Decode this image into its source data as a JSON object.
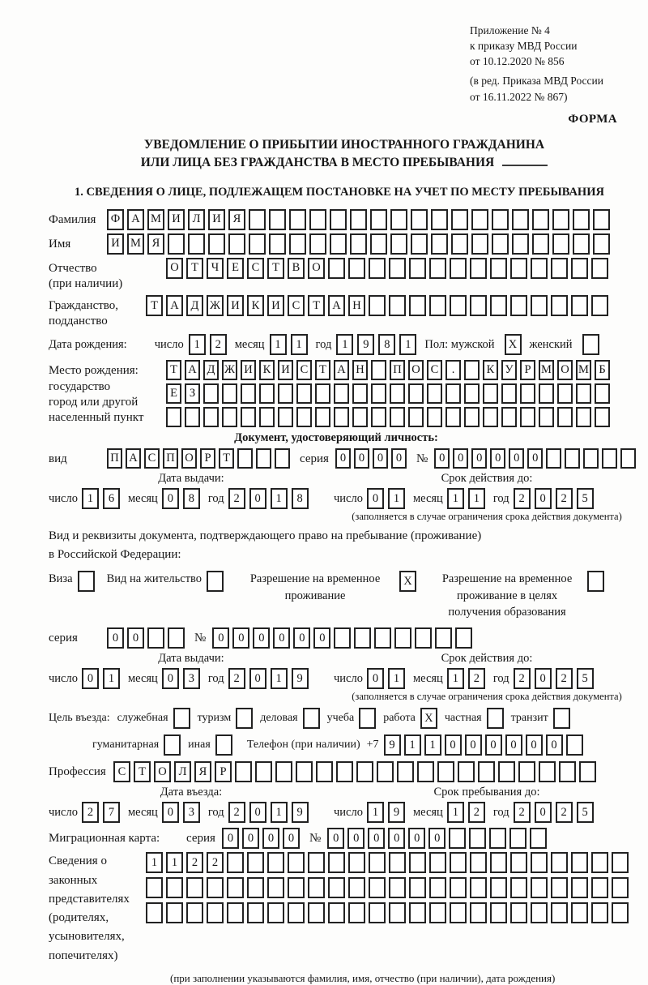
{
  "appendix": {
    "lines": [
      "Приложение № 4",
      "к приказу МВД России",
      "от 10.12.2020 № 856",
      "(в ред. Приказа МВД России",
      "от 16.11.2022 № 867)"
    ],
    "form_label": "ФОРМА"
  },
  "title": {
    "line1": "УВЕДОМЛЕНИЕ О ПРИБЫТИИ ИНОСТРАННОГО ГРАЖДАНИНА",
    "line2": "ИЛИ ЛИЦА БЕЗ ГРАЖДАНСТВА В МЕСТО ПРЕБЫВАНИЯ"
  },
  "section1_heading": "1. СВЕДЕНИЯ О ЛИЦЕ, ПОДЛЕЖАЩЕМ ПОСТАНОВКЕ НА УЧЕТ ПО МЕСТУ ПРЕБЫВАНИЯ",
  "surname": {
    "label": "Фамилия",
    "cells": [
      "Ф",
      "А",
      "М",
      "И",
      "Л",
      "И",
      "Я",
      "",
      "",
      "",
      "",
      "",
      "",
      "",
      "",
      "",
      "",
      "",
      "",
      "",
      "",
      "",
      "",
      "",
      ""
    ]
  },
  "firstname": {
    "label": "Имя",
    "cells": [
      "И",
      "М",
      "Я",
      "",
      "",
      "",
      "",
      "",
      "",
      "",
      "",
      "",
      "",
      "",
      "",
      "",
      "",
      "",
      "",
      "",
      "",
      "",
      "",
      "",
      ""
    ]
  },
  "patronymic": {
    "label_line1": "Отчество",
    "label_line2": "(при наличии)",
    "cells": [
      "О",
      "Т",
      "Ч",
      "Е",
      "С",
      "Т",
      "В",
      "О",
      "",
      "",
      "",
      "",
      "",
      "",
      "",
      "",
      "",
      "",
      "",
      "",
      "",
      ""
    ]
  },
  "citizenship": {
    "label_line1": "Гражданство,",
    "label_line2": "подданство",
    "cells": [
      "Т",
      "А",
      "Д",
      "Ж",
      "И",
      "К",
      "И",
      "С",
      "Т",
      "А",
      "Н",
      "",
      "",
      "",
      "",
      "",
      "",
      "",
      "",
      "",
      "",
      "",
      ""
    ]
  },
  "birth_date": {
    "label": "Дата рождения:",
    "day_label": "число",
    "day": [
      "1",
      "2"
    ],
    "month_label": "месяц",
    "month": [
      "1",
      "1"
    ],
    "year_label": "год",
    "year": [
      "1",
      "9",
      "8",
      "1"
    ],
    "sex_label": "Пол: мужской",
    "male": "X",
    "female_label": "женский",
    "female": ""
  },
  "birth_place": {
    "label_lines": [
      "Место рождения:",
      "государство",
      "город или другой",
      "населенный пункт"
    ],
    "row1": [
      "Т",
      "А",
      "Д",
      "Ж",
      "И",
      "К",
      "И",
      "С",
      "Т",
      "А",
      "Н",
      "",
      "П",
      "О",
      "С",
      ".",
      "",
      "К",
      "У",
      "Р",
      "М",
      "О",
      "М",
      "Б"
    ],
    "row2": [
      "Е",
      "З",
      "",
      "",
      "",
      "",
      "",
      "",
      "",
      "",
      "",
      "",
      "",
      "",
      "",
      "",
      "",
      "",
      "",
      "",
      "",
      "",
      "",
      ""
    ],
    "row3": [
      "",
      "",
      "",
      "",
      "",
      "",
      "",
      "",
      "",
      "",
      "",
      "",
      "",
      "",
      "",
      "",
      "",
      "",
      "",
      "",
      "",
      "",
      "",
      ""
    ]
  },
  "identity_doc": {
    "heading": "Документ, удостоверяющий личность:",
    "kind_label": "вид",
    "kind_cells": [
      "П",
      "А",
      "С",
      "П",
      "О",
      "Р",
      "Т",
      "",
      "",
      ""
    ],
    "series_label": "серия",
    "series_cells": [
      "0",
      "0",
      "0",
      "0"
    ],
    "number_label": "№",
    "number_cells": [
      "0",
      "0",
      "0",
      "0",
      "0",
      "0",
      "",
      "",
      "",
      "",
      ""
    ],
    "issue_heading": "Дата выдачи:",
    "issue": {
      "day_label": "число",
      "day": [
        "1",
        "6"
      ],
      "month_label": "месяц",
      "month": [
        "0",
        "8"
      ],
      "year_label": "год",
      "year": [
        "2",
        "0",
        "1",
        "8"
      ]
    },
    "valid_heading": "Срок действия до:",
    "valid": {
      "day_label": "число",
      "day": [
        "0",
        "1"
      ],
      "month_label": "месяц",
      "month": [
        "1",
        "1"
      ],
      "year_label": "год",
      "year": [
        "2",
        "0",
        "2",
        "5"
      ]
    },
    "note": "(заполняется в случае ограничения срока действия документа)"
  },
  "residence_doc": {
    "intro_line1": "Вид и реквизиты документа, подтверждающего право на пребывание (проживание)",
    "intro_line2": "в Российской Федерации:",
    "options": [
      {
        "label": "Виза",
        "value": ""
      },
      {
        "label": "Вид на жительство",
        "value": ""
      },
      {
        "label": "Разрешение на временное проживание",
        "value": "X"
      },
      {
        "label": "Разрешение на временное проживание в целях получения образования",
        "value": ""
      }
    ],
    "series_label": "серия",
    "series_cells": [
      "0",
      "0",
      "",
      ""
    ],
    "number_label": "№",
    "number_cells": [
      "0",
      "0",
      "0",
      "0",
      "0",
      "0",
      "",
      "",
      "",
      "",
      "",
      "",
      ""
    ],
    "issue_heading": "Дата выдачи:",
    "issue": {
      "day_label": "число",
      "day": [
        "0",
        "1"
      ],
      "month_label": "месяц",
      "month": [
        "0",
        "3"
      ],
      "year_label": "год",
      "year": [
        "2",
        "0",
        "1",
        "9"
      ]
    },
    "valid_heading": "Срок действия до:",
    "valid": {
      "day_label": "число",
      "day": [
        "0",
        "1"
      ],
      "month_label": "месяц",
      "month": [
        "1",
        "2"
      ],
      "year_label": "год",
      "year": [
        "2",
        "0",
        "2",
        "5"
      ]
    },
    "note": "(заполняется в случае ограничения срока действия документа)"
  },
  "purpose": {
    "label": "Цель въезда:",
    "options": [
      {
        "label": "служебная",
        "value": ""
      },
      {
        "label": "туризм",
        "value": ""
      },
      {
        "label": "деловая",
        "value": ""
      },
      {
        "label": "учеба",
        "value": ""
      },
      {
        "label": "работа",
        "value": "X"
      },
      {
        "label": "частная",
        "value": ""
      },
      {
        "label": "транзит",
        "value": ""
      },
      {
        "label": "гуманитарная",
        "value": ""
      },
      {
        "label": "иная",
        "value": ""
      }
    ],
    "phone_label": "Телефон (при наличии)",
    "phone_prefix": "+7",
    "phone_cells": [
      "9",
      "1",
      "1",
      "0",
      "0",
      "0",
      "0",
      "0",
      "0",
      ""
    ]
  },
  "profession": {
    "label": "Профессия",
    "cells": [
      "С",
      "Т",
      "О",
      "Л",
      "Я",
      "Р",
      "",
      "",
      "",
      "",
      "",
      "",
      "",
      "",
      "",
      "",
      "",
      "",
      "",
      "",
      "",
      "",
      "",
      ""
    ]
  },
  "entry": {
    "issue_heading": "Дата въезда:",
    "issue": {
      "day_label": "число",
      "day": [
        "2",
        "7"
      ],
      "month_label": "месяц",
      "month": [
        "0",
        "3"
      ],
      "year_label": "год",
      "year": [
        "2",
        "0",
        "1",
        "9"
      ]
    },
    "valid_heading": "Срок пребывания до:",
    "valid": {
      "day_label": "число",
      "day": [
        "1",
        "9"
      ],
      "month_label": "месяц",
      "month": [
        "1",
        "2"
      ],
      "year_label": "год",
      "year": [
        "2",
        "0",
        "2",
        "5"
      ]
    }
  },
  "migration_card": {
    "label": "Миграционная карта:",
    "series_label": "серия",
    "series_cells": [
      "0",
      "0",
      "0",
      "0"
    ],
    "number_label": "№",
    "number_cells": [
      "0",
      "0",
      "0",
      "0",
      "0",
      "0",
      "",
      "",
      "",
      "",
      ""
    ]
  },
  "representatives": {
    "label_lines": [
      "Сведения о",
      "законных",
      "представителях",
      "(родителях,",
      "усыновителях,",
      "попечителях)"
    ],
    "row1": [
      "1",
      "1",
      "2",
      "2",
      "",
      "",
      "",
      "",
      "",
      "",
      "",
      "",
      "",
      "",
      "",
      "",
      "",
      "",
      "",
      "",
      "",
      "",
      "",
      ""
    ],
    "row2": [
      "",
      "",
      "",
      "",
      "",
      "",
      "",
      "",
      "",
      "",
      "",
      "",
      "",
      "",
      "",
      "",
      "",
      "",
      "",
      "",
      "",
      "",
      "",
      ""
    ],
    "row3": [
      "",
      "",
      "",
      "",
      "",
      "",
      "",
      "",
      "",
      "",
      "",
      "",
      "",
      "",
      "",
      "",
      "",
      "",
      "",
      "",
      "",
      "",
      "",
      ""
    ],
    "note": "(при заполнении указываются фамилия, имя, отчество (при наличии), дата рождения)"
  }
}
